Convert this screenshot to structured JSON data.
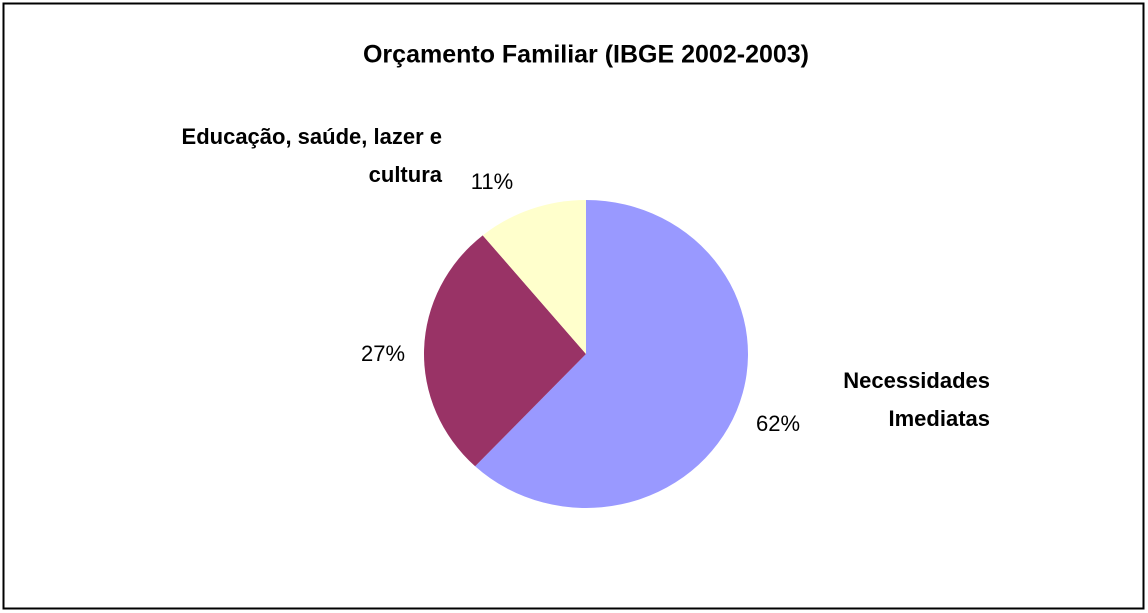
{
  "chart_data": {
    "type": "pie",
    "title": "Orçamento Familiar (IBGE 2002-2003)",
    "categories": [
      "Necessidades Imediatas",
      null,
      "Educação, saúde, lazer e cultura"
    ],
    "values": [
      62,
      27,
      11
    ],
    "value_labels": [
      "62%",
      "27%",
      "11%"
    ],
    "colors": [
      "#9999ff",
      "#993366",
      "#ffffcc"
    ]
  }
}
